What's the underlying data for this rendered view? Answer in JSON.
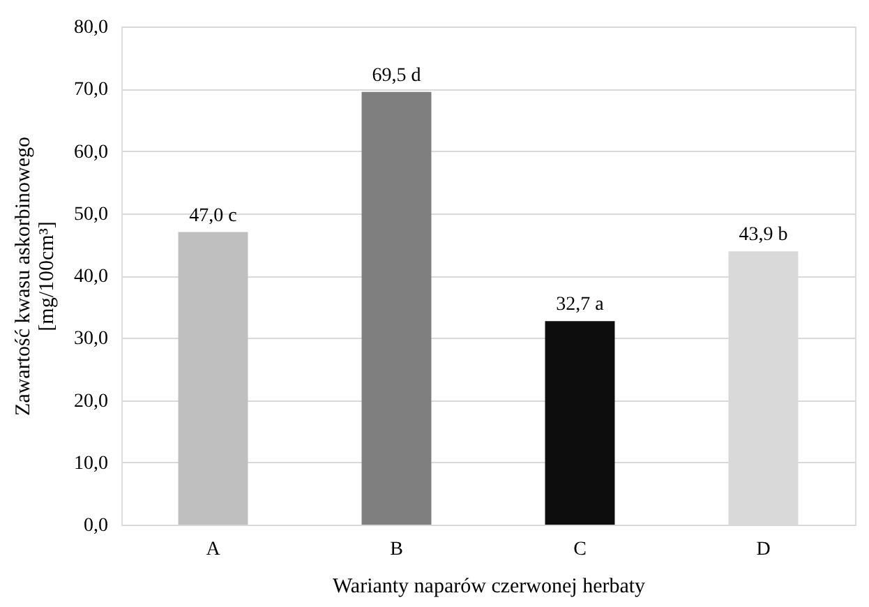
{
  "chart_data": {
    "type": "bar",
    "categories": [
      "A",
      "B",
      "C",
      "D"
    ],
    "values": [
      47.0,
      69.5,
      32.7,
      43.9
    ],
    "colors": [
      "#bfbfbf",
      "#7f7f7f",
      "#0d0d0d",
      "#d9d9d9"
    ],
    "value_labels": [
      "47,0 c",
      "69,5 d",
      "32,7 a",
      "43,9 b"
    ],
    "xlabel": "Warianty naparów czerwonej herbaty",
    "ylabel": "Zawartość kwasu askorbinowego\n[mg/100cm³]",
    "ylim": [
      0,
      80
    ],
    "yticks": [
      {
        "value": 0,
        "label": "0,0"
      },
      {
        "value": 10,
        "label": "10,0"
      },
      {
        "value": 20,
        "label": "20,0"
      },
      {
        "value": 30,
        "label": "30,0"
      },
      {
        "value": 40,
        "label": "40,0"
      },
      {
        "value": 50,
        "label": "50,0"
      },
      {
        "value": 60,
        "label": "60,0"
      },
      {
        "value": 70,
        "label": "70,0"
      },
      {
        "value": 80,
        "label": "80,0"
      }
    ],
    "grid": "y"
  }
}
